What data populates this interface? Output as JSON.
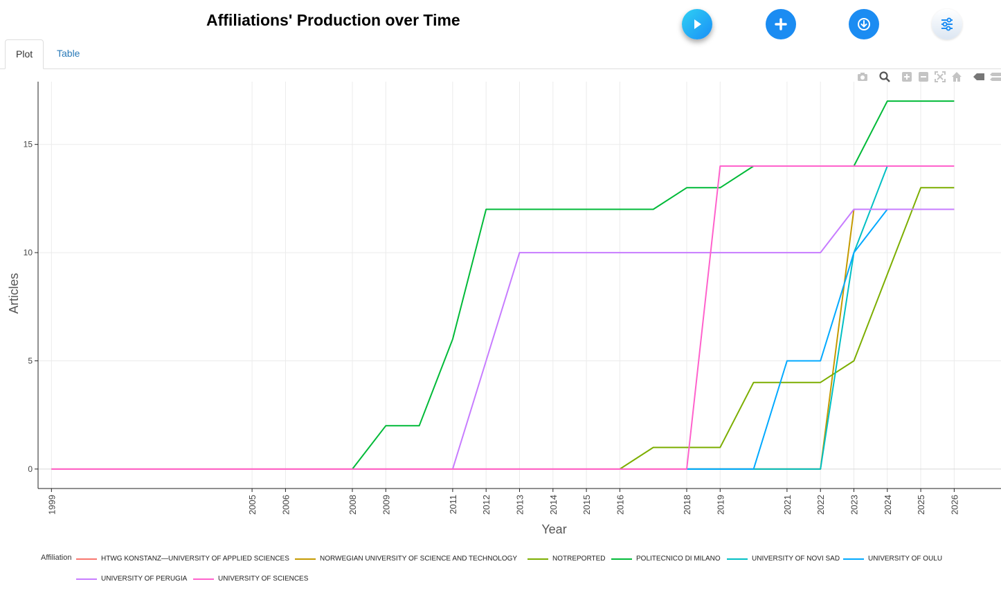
{
  "header": {
    "title": "Affiliations' Production over Time",
    "buttons": {
      "play_icon": "play-icon",
      "add_icon": "plus-icon",
      "download_icon": "download-icon",
      "options_icon": "sliders-icon"
    }
  },
  "tabs": [
    {
      "label": "Plot",
      "active": true
    },
    {
      "label": "Table",
      "active": false
    }
  ],
  "modebar": [
    "camera-icon",
    "zoom-icon",
    "zoom-in-icon",
    "zoom-out-icon",
    "autoscale-icon",
    "home-icon",
    "hover-closest-icon",
    "hover-compare-icon"
  ],
  "legend_title": "Affiliation",
  "chart_data": {
    "type": "line",
    "title": "Affiliations' Production over Time",
    "xlabel": "Year",
    "ylabel": "Articles",
    "xlim": [
      1998.6,
      2027.4
    ],
    "ylim": [
      -0.9,
      17.9
    ],
    "yticks": [
      0,
      5,
      10,
      15
    ],
    "xticks": [
      1999,
      2005,
      2006,
      2008,
      2009,
      2011,
      2012,
      2013,
      2014,
      2015,
      2016,
      2018,
      2019,
      2021,
      2022,
      2023,
      2024,
      2025,
      2026
    ],
    "grid": true,
    "legend_position": "bottom",
    "series": [
      {
        "name": "HTWG KONSTANZ—UNIVERSITY OF APPLIED SCIENCES",
        "color": "#F8766D",
        "x": [
          1999,
          2005,
          2006,
          2008,
          2009,
          2010,
          2011,
          2012,
          2013,
          2014,
          2015,
          2016,
          2017,
          2018,
          2019,
          2020,
          2021,
          2022
        ],
        "y": [
          0,
          0,
          0,
          0,
          0,
          0,
          0,
          0,
          0,
          0,
          0,
          0,
          0,
          0,
          0,
          0,
          0,
          0
        ]
      },
      {
        "name": "NORWEGIAN UNIVERSITY OF SCIENCE AND TECHNOLOGY",
        "color": "#C49A00",
        "x": [
          2018,
          2019,
          2020,
          2021,
          2022,
          2023,
          2024,
          2025,
          2026
        ],
        "y": [
          0,
          0,
          0,
          0,
          0,
          12,
          12,
          12,
          12
        ]
      },
      {
        "name": "NOTREPORTED",
        "color": "#7CAE00",
        "x": [
          2016,
          2017,
          2018,
          2019,
          2020,
          2021,
          2022,
          2023,
          2024,
          2025,
          2026
        ],
        "y": [
          0,
          1,
          1,
          1,
          4,
          4,
          4,
          5,
          9,
          13,
          13
        ]
      },
      {
        "name": "POLITECNICO DI MILANO",
        "color": "#00BA38",
        "x": [
          2008,
          2009,
          2010,
          2011,
          2012,
          2013,
          2014,
          2015,
          2016,
          2017,
          2018,
          2019,
          2020,
          2021,
          2022,
          2023,
          2024,
          2025,
          2026
        ],
        "y": [
          0,
          2,
          2,
          6,
          12,
          12,
          12,
          12,
          12,
          12,
          13,
          13,
          14,
          14,
          14,
          14,
          17,
          17,
          17
        ]
      },
      {
        "name": "UNIVERSITY OF NOVI SAD",
        "color": "#00BFC4",
        "x": [
          2018,
          2019,
          2020,
          2021,
          2022,
          2023,
          2024
        ],
        "y": [
          0,
          0,
          0,
          0,
          0,
          10,
          14
        ]
      },
      {
        "name": "UNIVERSITY OF OULU",
        "color": "#00A9FF",
        "x": [
          2018,
          2019,
          2020,
          2021,
          2022,
          2023,
          2024
        ],
        "y": [
          0,
          0,
          0,
          5,
          5,
          10,
          12
        ]
      },
      {
        "name": "UNIVERSITY OF PERUGIA",
        "color": "#C77CFF",
        "x": [
          2011,
          2012,
          2013,
          2014,
          2015,
          2016,
          2017,
          2018,
          2019,
          2020,
          2021,
          2022,
          2023,
          2024,
          2025,
          2026
        ],
        "y": [
          0,
          5,
          10,
          10,
          10,
          10,
          10,
          10,
          10,
          10,
          10,
          10,
          12,
          12,
          12,
          12
        ]
      },
      {
        "name": "UNIVERSITY OF SCIENCES",
        "color": "#FF61CC",
        "x": [
          1999,
          2005,
          2006,
          2008,
          2009,
          2010,
          2011,
          2012,
          2013,
          2014,
          2015,
          2016,
          2017,
          2018,
          2019,
          2020,
          2021,
          2022,
          2023,
          2024,
          2025,
          2026
        ],
        "y": [
          0,
          0,
          0,
          0,
          0,
          0,
          0,
          0,
          0,
          0,
          0,
          0,
          0,
          0,
          14,
          14,
          14,
          14,
          14,
          14,
          14,
          14
        ]
      }
    ]
  }
}
